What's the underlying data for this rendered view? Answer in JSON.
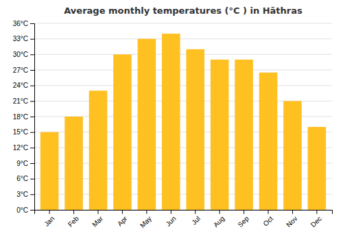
{
  "chart_data": {
    "type": "bar",
    "title": "Average monthly temperatures (°C ) in Hāthras",
    "categories": [
      "Jan",
      "Feb",
      "Mar",
      "Apr",
      "May",
      "Jun",
      "Jul",
      "Aug",
      "Sep",
      "Oct",
      "Nov",
      "Dec"
    ],
    "values": [
      15.0,
      18.0,
      23.0,
      30.0,
      33.0,
      34.0,
      31.0,
      29.0,
      29.0,
      26.5,
      21.0,
      16.0
    ],
    "color": "#FFC022",
    "ylim": [
      0,
      36
    ],
    "yticks": [
      {
        "value": 0,
        "label": "0°C"
      },
      {
        "value": 3,
        "label": "3°C"
      },
      {
        "value": 6,
        "label": "6°C"
      },
      {
        "value": 9,
        "label": "9°C"
      },
      {
        "value": 12,
        "label": "12°C"
      },
      {
        "value": 15,
        "label": "15°C"
      },
      {
        "value": 18,
        "label": "18°C"
      },
      {
        "value": 21,
        "label": "21°C"
      },
      {
        "value": 24,
        "label": "24°C"
      },
      {
        "value": 27,
        "label": "27°C"
      },
      {
        "value": 30,
        "label": "30°C"
      },
      {
        "value": 33,
        "label": "33°C"
      },
      {
        "value": 36,
        "label": "36°C"
      }
    ],
    "grid": true
  }
}
